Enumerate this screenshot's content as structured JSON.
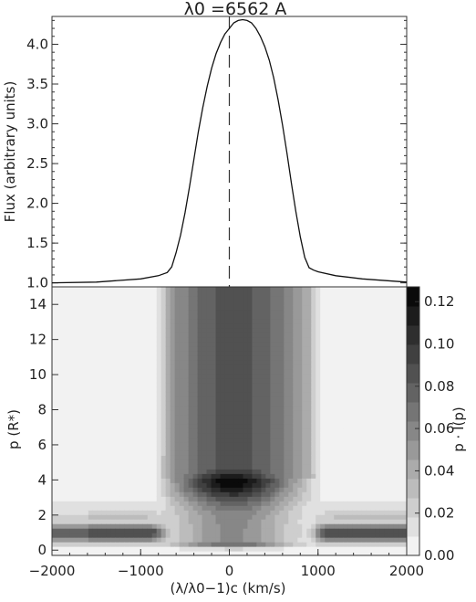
{
  "chart_data": [
    {
      "type": "line",
      "title": "λ0 =6562 A",
      "ylabel": "Flux (arbitrary units)",
      "xlabel": "",
      "xlim": [
        -2000,
        2000
      ],
      "ylim": [
        0.95,
        4.35
      ],
      "yticks": [
        "1.0",
        "1.5",
        "2.0",
        "2.5",
        "3.0",
        "3.5",
        "4.0"
      ],
      "reference_line": {
        "x": 0,
        "style": "dashed"
      },
      "grid": false,
      "series": [
        {
          "x": [
            -2000,
            -1500,
            -1000,
            -800,
            -700,
            -650,
            -600,
            -550,
            -500,
            -450,
            -400,
            -350,
            -300,
            -250,
            -200,
            -150,
            -100,
            -50,
            0,
            50,
            100,
            150,
            200,
            250,
            300,
            350,
            400,
            450,
            500,
            550,
            600,
            650,
            700,
            750,
            800,
            850,
            900,
            950,
            1000,
            1200,
            1500,
            2000
          ],
          "values": [
            1.0,
            1.01,
            1.05,
            1.09,
            1.13,
            1.2,
            1.38,
            1.6,
            1.88,
            2.2,
            2.55,
            2.9,
            3.2,
            3.47,
            3.7,
            3.88,
            4.02,
            4.13,
            4.2,
            4.27,
            4.3,
            4.31,
            4.3,
            4.27,
            4.2,
            4.1,
            3.97,
            3.8,
            3.58,
            3.3,
            2.98,
            2.63,
            2.25,
            1.9,
            1.58,
            1.32,
            1.19,
            1.16,
            1.14,
            1.09,
            1.05,
            1.01
          ]
        }
      ]
    },
    {
      "type": "heatmap",
      "xlabel": "(λ/λ0−1)c (km/s)",
      "ylabel": "p (R*)",
      "xlim": [
        -2000,
        2000
      ],
      "ylim": [
        -0.3,
        15
      ],
      "xticks": [
        "−2000",
        "−1000",
        "0",
        "1000",
        "2000"
      ],
      "yticks": [
        "0",
        "2",
        "4",
        "6",
        "8",
        "10",
        "12",
        "14"
      ],
      "colorbar": {
        "label": "p · I(p)",
        "range": [
          0,
          0.127
        ],
        "ticks": [
          "0.00",
          "0.02",
          "0.04",
          "0.06",
          "0.08",
          "0.10",
          "0.12"
        ],
        "levels": 14
      },
      "features": [
        {
          "name": "core peak",
          "velocity_kms": 50,
          "p": 4.0,
          "value": 0.127
        },
        {
          "name": "low-p band",
          "p_range": [
            0.3,
            2.0
          ],
          "value": 0.1
        },
        {
          "name": "halo",
          "velocity_range_kms": [
            -800,
            900
          ],
          "p_max": 15
        }
      ]
    }
  ]
}
